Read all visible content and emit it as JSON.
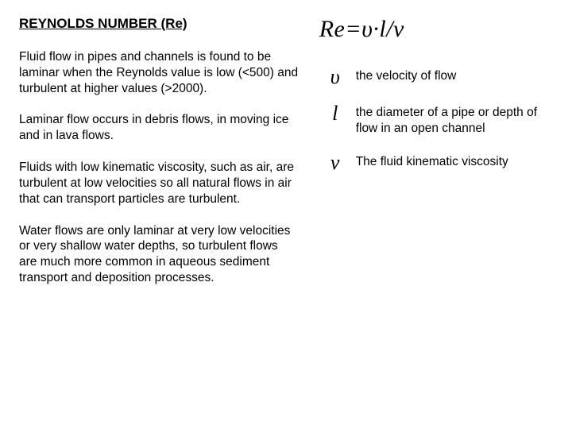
{
  "title": "REYNOLDS NUMBER (Re)",
  "paragraphs": {
    "p1": "Fluid flow in pipes and channels is found to be laminar when the Reynolds value is low (<500) and turbulent at higher values (>2000).",
    "p2": "Laminar flow occurs in debris flows, in moving ice and in lava flows.",
    "p3": "Fluids with low kinematic viscosity, such as air, are turbulent at low velocities so all natural flows in air that can transport particles are turbulent.",
    "p4": "Water flows are only laminar at very low velocities or very shallow water depths, so turbulent flows are much more common in aqueous sediment transport and deposition processes."
  },
  "formula": {
    "lhs": "Re",
    "eq": "=",
    "v": "υ",
    "dot": "·",
    "l": "l",
    "slash": "/",
    "nu": "ν"
  },
  "legend": {
    "v": {
      "symbol": "υ",
      "desc": "the velocity of flow"
    },
    "l": {
      "symbol": "l",
      "desc": "the diameter of a pipe or depth of flow in an open channel"
    },
    "nu": {
      "symbol": "ν",
      "desc": "The fluid kinematic viscosity"
    }
  },
  "colors": {
    "background": "#ffffff",
    "text": "#000000"
  },
  "fonts": {
    "body": "Arial",
    "math": "Times New Roman"
  }
}
